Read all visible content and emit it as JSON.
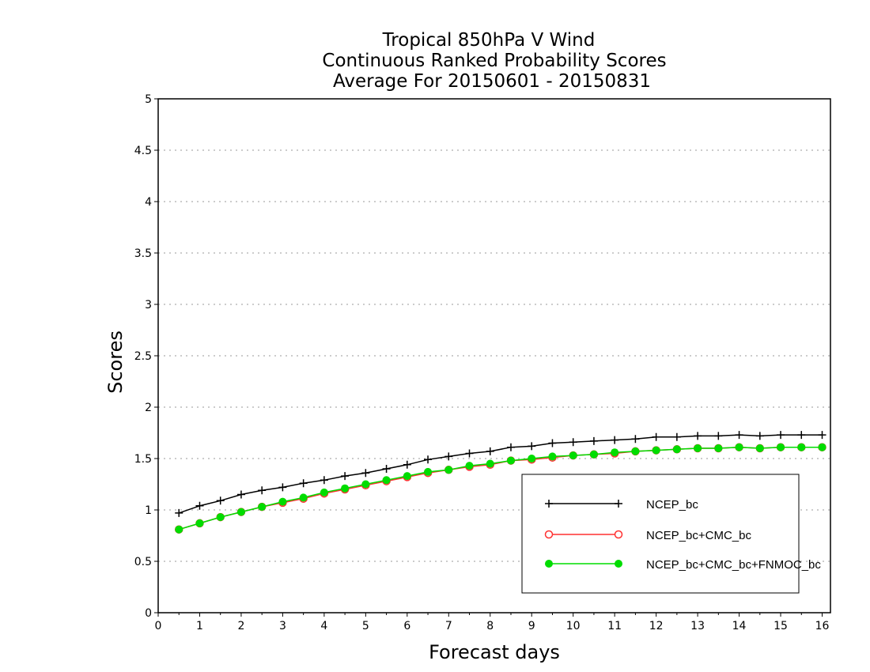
{
  "chart_data": {
    "type": "line",
    "title": [
      "Tropical 850hPa V Wind",
      "Continuous Ranked Probability Scores",
      "Average For 20150601 - 20150831"
    ],
    "xlabel": "Forecast days",
    "ylabel": "Scores",
    "xlim": [
      0,
      16.2
    ],
    "ylim": [
      0,
      5
    ],
    "xticks": [
      "0",
      "1",
      "2",
      "3",
      "4",
      "5",
      "6",
      "7",
      "8",
      "9",
      "10",
      "11",
      "12",
      "13",
      "14",
      "15",
      "16"
    ],
    "yticks": [
      "0",
      "0.5",
      "1",
      "1.5",
      "2",
      "2.5",
      "3",
      "3.5",
      "4",
      "4.5",
      "5"
    ],
    "grid": "horizontal-dotted",
    "legend_position": "bottom-right",
    "x": [
      0.5,
      1,
      1.5,
      2,
      2.5,
      3,
      3.5,
      4,
      4.5,
      5,
      5.5,
      6,
      6.5,
      7,
      7.5,
      8,
      8.5,
      9,
      9.5,
      10,
      10.5,
      11,
      11.5,
      12,
      12.5,
      13,
      13.5,
      14,
      14.5,
      15,
      15.5,
      16
    ],
    "series": [
      {
        "name": "NCEP_bc",
        "color": "#000000",
        "marker": "plus",
        "values": [
          0.97,
          1.04,
          1.09,
          1.15,
          1.19,
          1.22,
          1.26,
          1.29,
          1.33,
          1.36,
          1.4,
          1.44,
          1.49,
          1.52,
          1.55,
          1.57,
          1.61,
          1.62,
          1.65,
          1.66,
          1.67,
          1.68,
          1.69,
          1.71,
          1.71,
          1.72,
          1.72,
          1.73,
          1.72,
          1.73,
          1.73,
          1.73
        ]
      },
      {
        "name": "NCEP_bc+CMC_bc",
        "color": "#ff3030",
        "marker": "open-circle",
        "values": [
          0.81,
          0.87,
          0.93,
          0.98,
          1.03,
          1.07,
          1.11,
          1.16,
          1.2,
          1.24,
          1.28,
          1.32,
          1.36,
          1.39,
          1.42,
          1.44,
          1.48,
          1.49,
          1.51,
          1.53,
          1.54,
          1.55,
          1.57,
          1.58,
          1.59,
          1.6,
          1.6,
          1.61,
          1.6,
          1.61,
          1.61,
          1.61
        ]
      },
      {
        "name": "NCEP_bc+CMC_bc+FNMOC_bc",
        "color": "#00dd00",
        "marker": "filled-circle",
        "values": [
          0.81,
          0.87,
          0.93,
          0.98,
          1.03,
          1.08,
          1.12,
          1.17,
          1.21,
          1.25,
          1.29,
          1.33,
          1.37,
          1.39,
          1.43,
          1.45,
          1.48,
          1.5,
          1.52,
          1.53,
          1.54,
          1.56,
          1.57,
          1.58,
          1.59,
          1.6,
          1.6,
          1.61,
          1.6,
          1.61,
          1.61,
          1.61
        ]
      }
    ]
  }
}
